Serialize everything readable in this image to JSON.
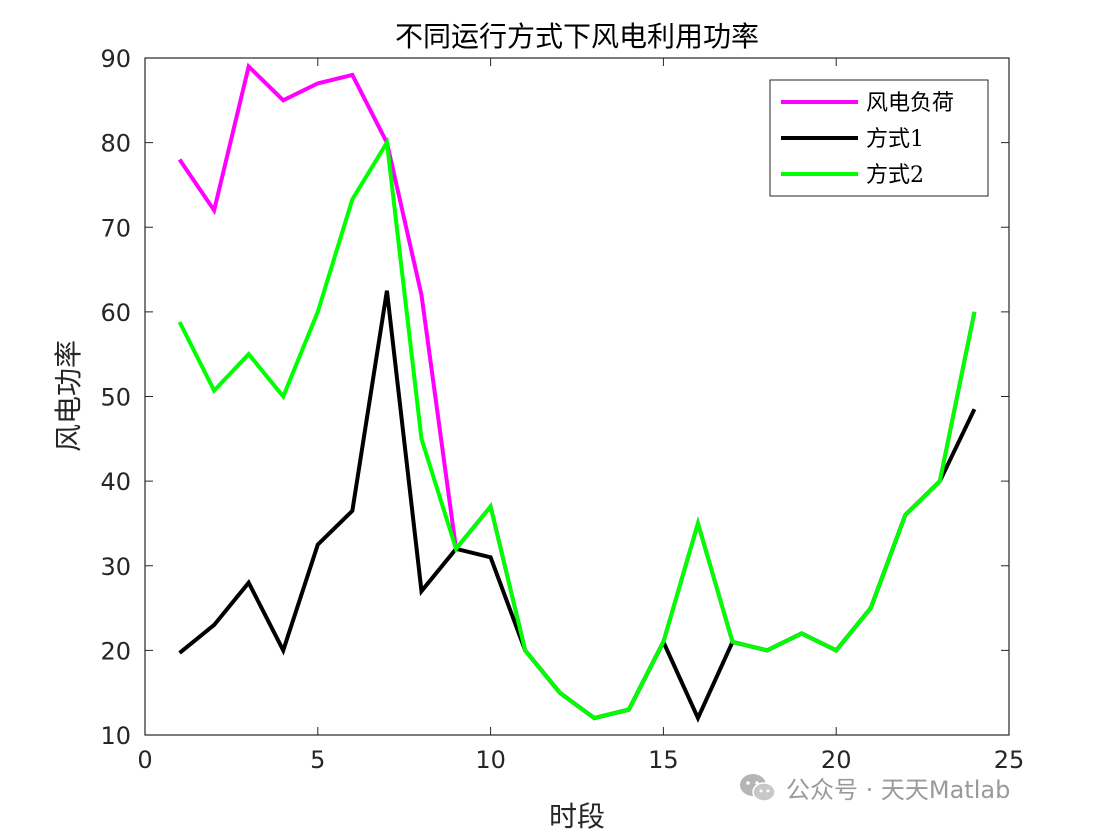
{
  "chart_data": {
    "type": "line",
    "title": "不同运行方式下风电利用功率",
    "xlabel": "时段",
    "ylabel": "风电功率",
    "xlim": [
      0,
      25
    ],
    "ylim": [
      10,
      90
    ],
    "xticks": [
      0,
      5,
      10,
      15,
      20,
      25
    ],
    "yticks": [
      10,
      20,
      30,
      40,
      50,
      60,
      70,
      80,
      90
    ],
    "grid": false,
    "legend_position": "top-right",
    "x": [
      1,
      2,
      3,
      4,
      5,
      6,
      7,
      8,
      9,
      10,
      11,
      12,
      13,
      14,
      15,
      16,
      17,
      18,
      19,
      20,
      21,
      22,
      23,
      24
    ],
    "series": [
      {
        "name": "风电负荷",
        "color": "#ff00ff",
        "values": [
          78,
          72,
          89,
          85,
          87,
          88,
          80,
          62,
          32,
          37,
          20,
          15,
          12,
          13,
          21,
          35,
          21,
          20,
          22,
          20,
          25,
          36,
          40,
          60
        ]
      },
      {
        "name": "方式1",
        "color": "#000000",
        "values": [
          19.7,
          23,
          28,
          20,
          32.5,
          36.5,
          62.5,
          27,
          32,
          31,
          20,
          15,
          12,
          13,
          21,
          12,
          21,
          20,
          22,
          20,
          25,
          36,
          40,
          48.5
        ]
      },
      {
        "name": "方式2",
        "color": "#00ff00",
        "values": [
          58.8,
          50.7,
          55,
          50,
          60,
          73.3,
          80,
          45,
          32,
          37,
          20,
          15,
          12,
          13,
          21,
          35,
          21,
          20,
          22,
          20,
          25,
          36,
          40,
          60
        ]
      }
    ]
  },
  "watermark": {
    "text": "公众号 · 天天Matlab",
    "icon": "wechat-icon"
  }
}
